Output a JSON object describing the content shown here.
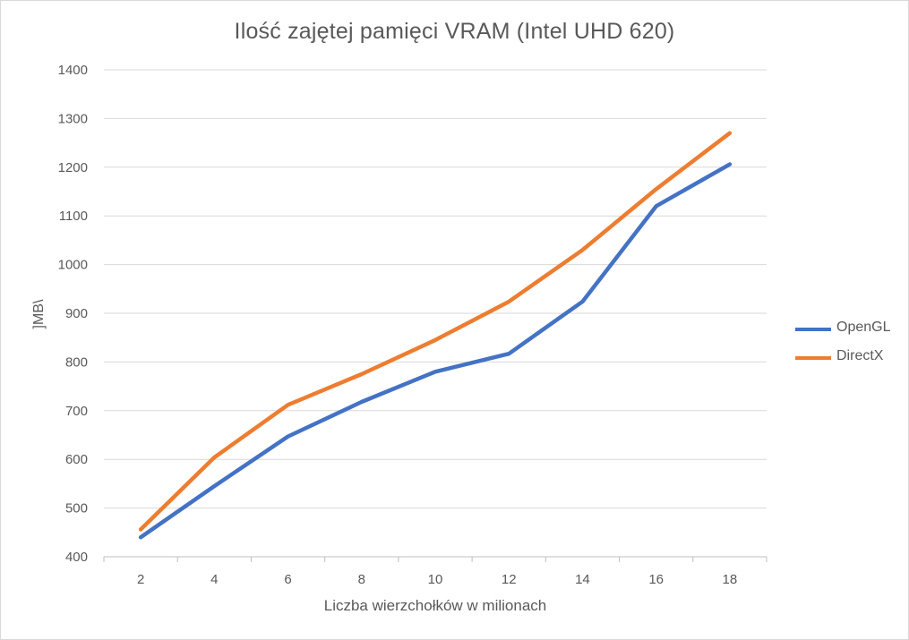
{
  "chart_data": {
    "type": "line",
    "title": "Ilość zajętej pamięci VRAM (Intel UHD 620)",
    "xlabel": "Liczba wierzchołków w milionach",
    "ylabel": "]MB\\",
    "categories": [
      "2",
      "4",
      "6",
      "8",
      "10",
      "12",
      "14",
      "16",
      "18"
    ],
    "ylim": [
      400,
      1400
    ],
    "yticks": [
      400,
      500,
      600,
      700,
      800,
      900,
      1000,
      1100,
      1200,
      1300,
      1400
    ],
    "grid": true,
    "legend_position": "right",
    "series": [
      {
        "name": "OpenGL",
        "color": "#4472C4",
        "values": [
          440,
          545,
          647,
          718,
          780,
          817,
          924,
          1120,
          1206
        ]
      },
      {
        "name": "DirectX",
        "color": "#ED7D31",
        "values": [
          456,
          604,
          712,
          775,
          845,
          924,
          1030,
          1155,
          1270
        ]
      }
    ]
  }
}
